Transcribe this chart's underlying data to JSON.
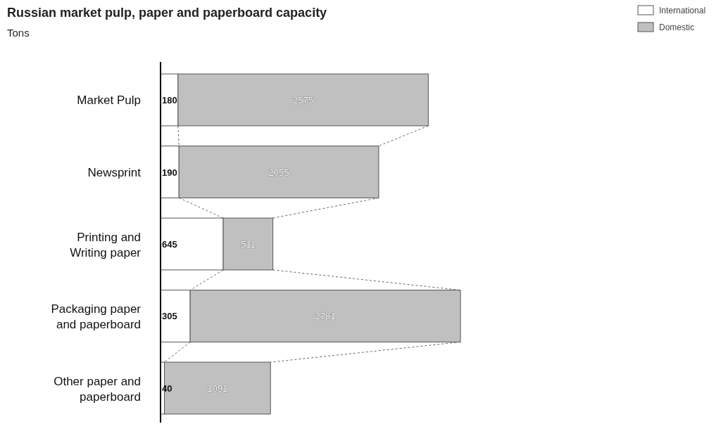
{
  "chart_data": {
    "type": "bar",
    "title": "Russian market pulp, paper and paperboard capacity",
    "subtitle": "Tons",
    "orientation": "horizontal",
    "stacked": true,
    "data_labels": true,
    "legend": "top right",
    "categories": [
      "Market Pulp",
      "Newsprint",
      "Printing and Writing paper",
      "Packaging paper and paperboard",
      "Other paper and paperboard"
    ],
    "series": [
      {
        "name": "International",
        "color": "#ffffff",
        "values": [
          180,
          190,
          645,
          305,
          40
        ]
      },
      {
        "name": "Domestic",
        "color": "#c0c0c0",
        "values": [
          2575,
          2055,
          511,
          2781,
          1091
        ]
      }
    ]
  }
}
